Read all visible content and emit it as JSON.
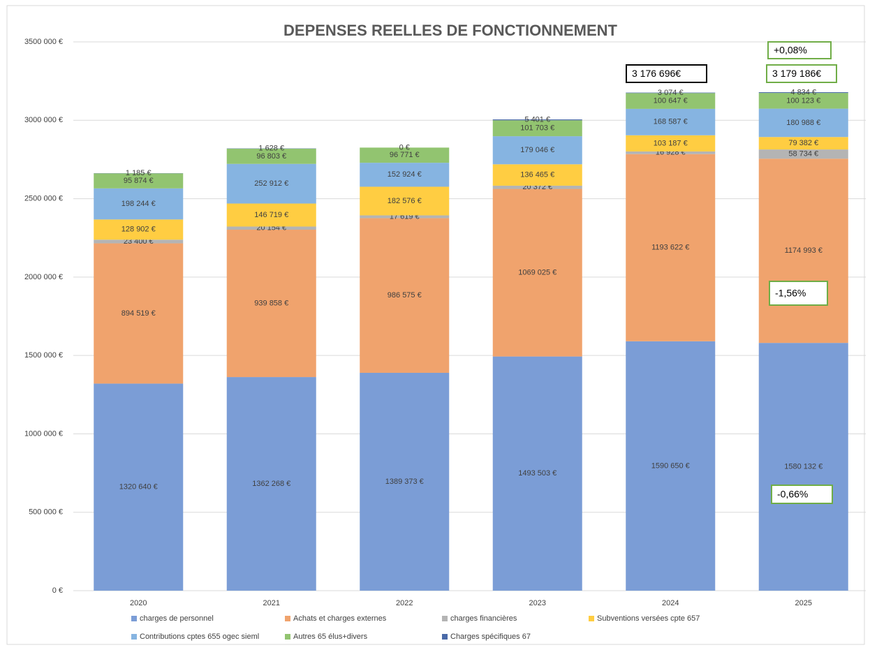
{
  "chart_data": {
    "type": "stacked_bar",
    "title": "DEPENSES REELLES DE FONCTIONNEMENT",
    "categories": [
      "2020",
      "2021",
      "2022",
      "2023",
      "2024",
      "2025"
    ],
    "series": [
      {
        "name": "charges de personnel",
        "color": "#7b9dd6",
        "values": [
          1320640,
          1362268,
          1389373,
          1493503,
          1590650,
          1580132
        ],
        "value_labels": [
          "1320 640 €",
          "1362 268 €",
          "1389 373 €",
          "1493 503 €",
          "1590 650 €",
          "1580 132 €"
        ]
      },
      {
        "name": "Achats et charges externes",
        "color": "#f0a36d",
        "values": [
          894519,
          939858,
          986575,
          1069025,
          1193622,
          1174993
        ],
        "value_labels": [
          "894 519 €",
          "939 858 €",
          "986 575 €",
          "1069 025 €",
          "1193 622 €",
          "1174 993 €"
        ]
      },
      {
        "name": "charges financières",
        "color": "#b4b4b4",
        "values": [
          23400,
          20154,
          17619,
          20372,
          16928,
          58734
        ],
        "value_labels": [
          "23 400 €",
          "20 154 €",
          "17 619 €",
          "20 372 €",
          "16 928 €",
          "58 734 €"
        ]
      },
      {
        "name": "Subventions versées cpte 657",
        "color": "#ffcd42",
        "values": [
          128902,
          146719,
          182576,
          136465,
          103187,
          79382
        ],
        "value_labels": [
          "128 902 €",
          "146 719 €",
          "182 576 €",
          "136 465 €",
          "103 187 €",
          "79 382 €"
        ]
      },
      {
        "name": "Contributions cptes 655 ogec sieml",
        "color": "#86b4e1",
        "values": [
          198244,
          252912,
          152924,
          179046,
          168587,
          180988
        ],
        "value_labels": [
          "198 244 €",
          "252 912 €",
          "152 924 €",
          "179 046 €",
          "168 587 €",
          "180 988 €"
        ]
      },
      {
        "name": "Autres 65 élus+divers",
        "color": "#92c470",
        "values": [
          95874,
          96803,
          96771,
          101703,
          100647,
          100123
        ],
        "value_labels": [
          "95 874 €",
          "96 803 €",
          "96 771 €",
          "101 703 €",
          "100 647 €",
          "100 123 €"
        ]
      },
      {
        "name": "Charges spécifiques 67",
        "color": "#4a6aa8",
        "values": [
          1185,
          1628,
          0,
          5401,
          3074,
          4834
        ],
        "value_labels": [
          "1 185 €",
          "1 628 €",
          "0 €",
          "5 401 €",
          "3 074 €",
          "4 834 €"
        ]
      }
    ],
    "ylim": [
      0,
      3500000
    ],
    "yticks": [
      {
        "value": 0,
        "label": "0 €"
      },
      {
        "value": 500000,
        "label": "500 000 €"
      },
      {
        "value": 1000000,
        "label": "1000 000 €"
      },
      {
        "value": 1500000,
        "label": "1500 000 €"
      },
      {
        "value": 2000000,
        "label": "2000 000 €"
      },
      {
        "value": 2500000,
        "label": "2500 000 €"
      },
      {
        "value": 3000000,
        "label": "3000 000 €"
      },
      {
        "value": 3500000,
        "label": "3500 000 €"
      }
    ],
    "grid": true,
    "annotations": [
      "3 176 696€",
      "3 179 186€",
      "+0,08%",
      "-1,56%",
      "-0,66%"
    ]
  }
}
